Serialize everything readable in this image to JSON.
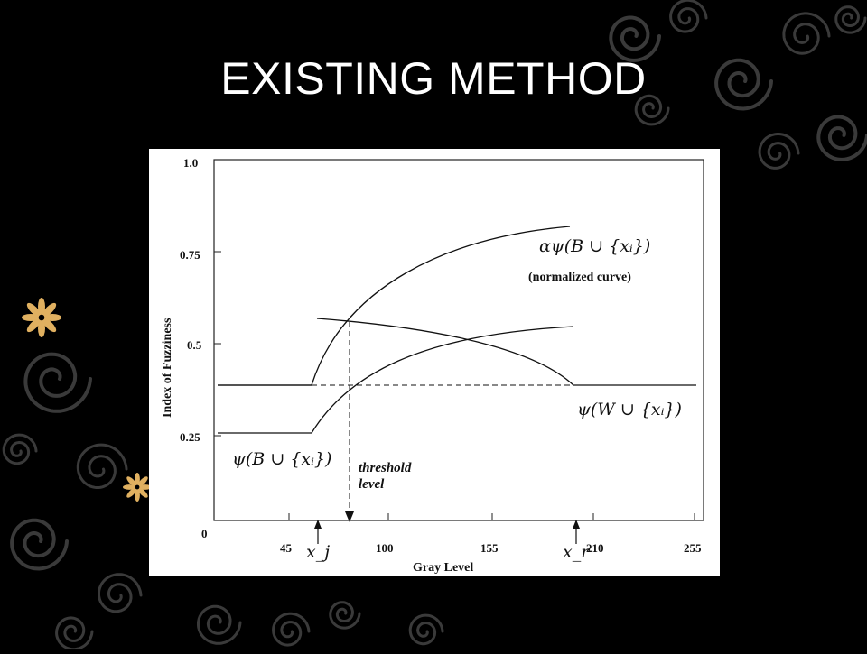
{
  "slide": {
    "title": "EXISTING METHOD",
    "colors": {
      "background": "#000000",
      "swirl": "#3a3a3a",
      "flower": "#e0b060",
      "title_text": "#ffffff"
    }
  },
  "figure": {
    "y_axis_title": "Index of Fuzziness",
    "x_axis_title": "Gray Level",
    "y_ticks": [
      "1.0",
      "0.75",
      "0.5",
      "0.25",
      "0"
    ],
    "x_ticks": [
      "45",
      "100",
      "155",
      "210",
      "255"
    ],
    "x_markers": {
      "xj": "x_j",
      "xr": "x_r"
    },
    "labels": {
      "normalized_main": "αψ(B ∪ {xᵢ})",
      "normalized_note": "(normalized curve)",
      "w_curve": "ψ(W ∪ {xᵢ})",
      "b_curve": "ψ(B ∪ {xᵢ})",
      "threshold_line1": "threshold",
      "threshold_line2": "level"
    }
  }
}
